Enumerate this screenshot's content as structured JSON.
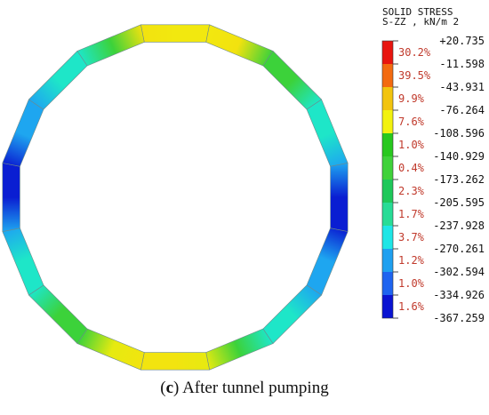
{
  "chart_data": {
    "type": "contour-ring",
    "legend": {
      "title_line1": "SOLID STRESS",
      "title_line2": "S-ZZ , kN/m 2",
      "levels": [
        "+20.735",
        "-11.598",
        "-43.931",
        "-76.264",
        "-108.596",
        "-140.929",
        "-173.262",
        "-205.595",
        "-237.928",
        "-270.261",
        "-302.594",
        "-334.926",
        "-367.259"
      ],
      "bands": [
        {
          "pct": "30.2%",
          "color": "#e8150f"
        },
        {
          "pct": "39.5%",
          "color": "#f36a10"
        },
        {
          "pct": "9.9%",
          "color": "#f2c40f"
        },
        {
          "pct": "7.6%",
          "color": "#f2f20f"
        },
        {
          "pct": "1.0%",
          "color": "#28c81e"
        },
        {
          "pct": "0.4%",
          "color": "#3fd23a"
        },
        {
          "pct": "2.3%",
          "color": "#1ec85a"
        },
        {
          "pct": "1.7%",
          "color": "#28dc96"
        },
        {
          "pct": "3.7%",
          "color": "#1ee6e6"
        },
        {
          "pct": "1.2%",
          "color": "#1ea0f0"
        },
        {
          "pct": "1.0%",
          "color": "#1e64f0"
        },
        {
          "pct": "1.6%",
          "color": "#0a14d2"
        }
      ]
    }
  },
  "caption": {
    "label": "c",
    "text": " After tunnel pumping"
  }
}
